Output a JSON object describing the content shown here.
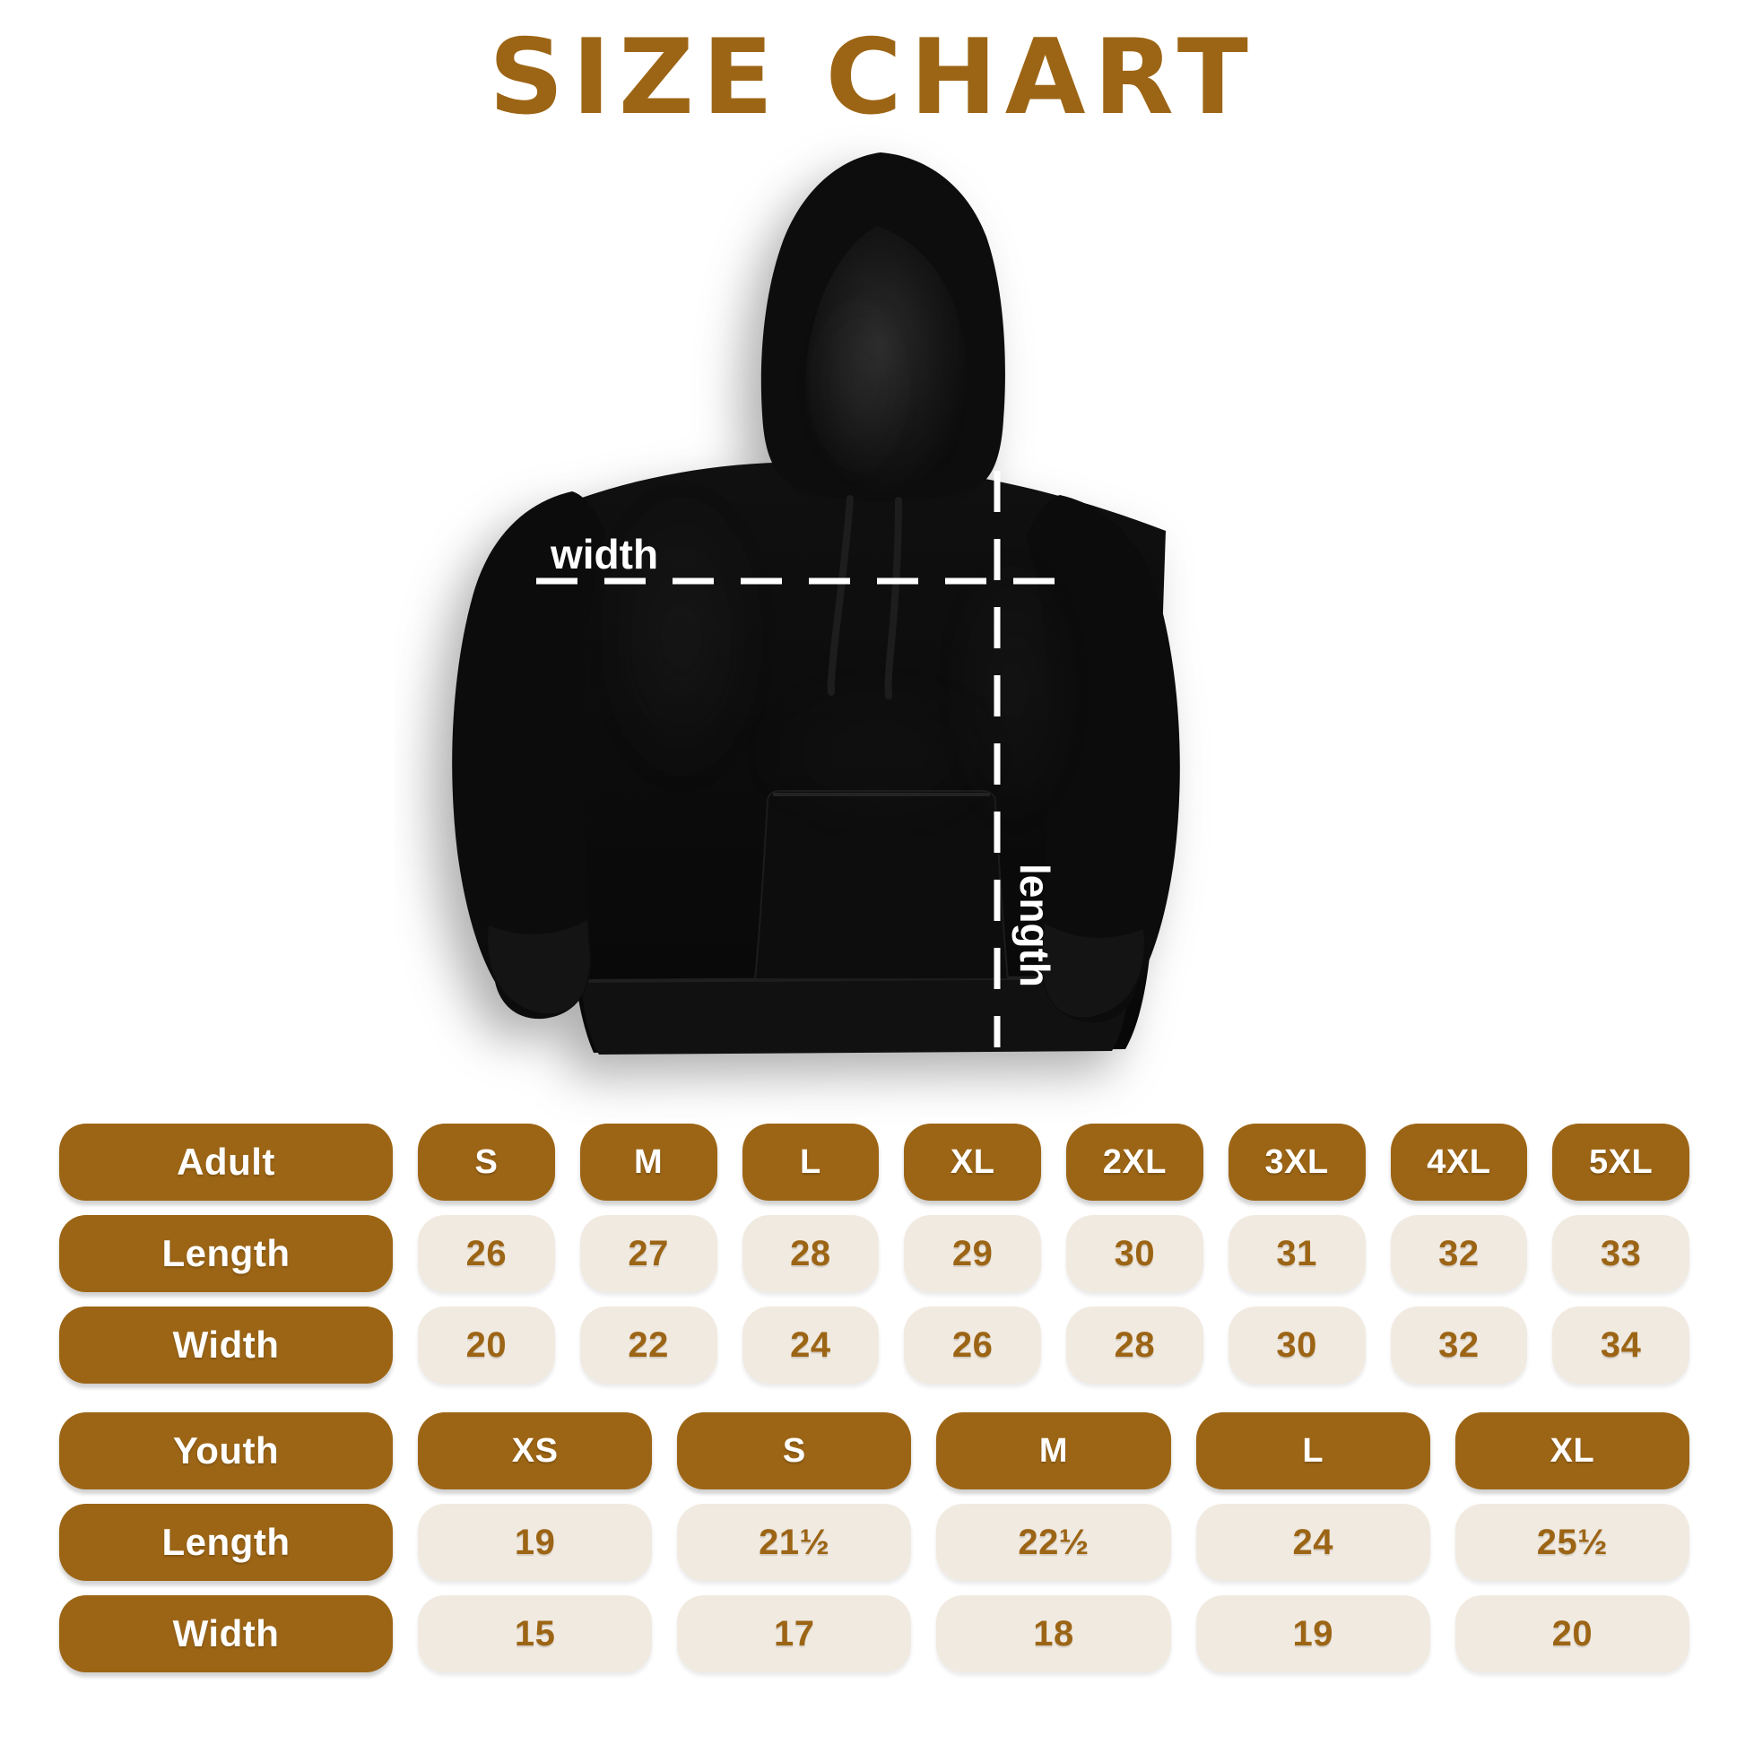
{
  "title": "SIZE CHART",
  "figure": {
    "width_label": "width",
    "length_label": "length"
  },
  "colors": {
    "accent_brown": "#9C6515",
    "pill_cream": "#F1EAE1",
    "pill_text_white": "#FFFFFF",
    "hoodie_black": "#0B0B0B",
    "measure_line_white": "#FFFFFF",
    "background": "#FFFFFF"
  },
  "chart_data": [
    {
      "type": "table",
      "title": "Adult hoodie sizes (inches)",
      "columns": [
        "Adult",
        "S",
        "M",
        "L",
        "XL",
        "2XL",
        "3XL",
        "4XL",
        "5XL"
      ],
      "rows": [
        [
          "Length",
          "26",
          "27",
          "28",
          "29",
          "30",
          "31",
          "32",
          "33"
        ],
        [
          "Width",
          "20",
          "22",
          "24",
          "26",
          "28",
          "30",
          "32",
          "34"
        ]
      ]
    },
    {
      "type": "table",
      "title": "Youth hoodie sizes (inches)",
      "columns": [
        "Youth",
        "XS",
        "S",
        "M",
        "L",
        "XL"
      ],
      "rows": [
        [
          "Length",
          "19",
          "21½",
          "22½",
          "24",
          "25½"
        ],
        [
          "Width",
          "15",
          "17",
          "18",
          "19",
          "20"
        ]
      ]
    }
  ]
}
